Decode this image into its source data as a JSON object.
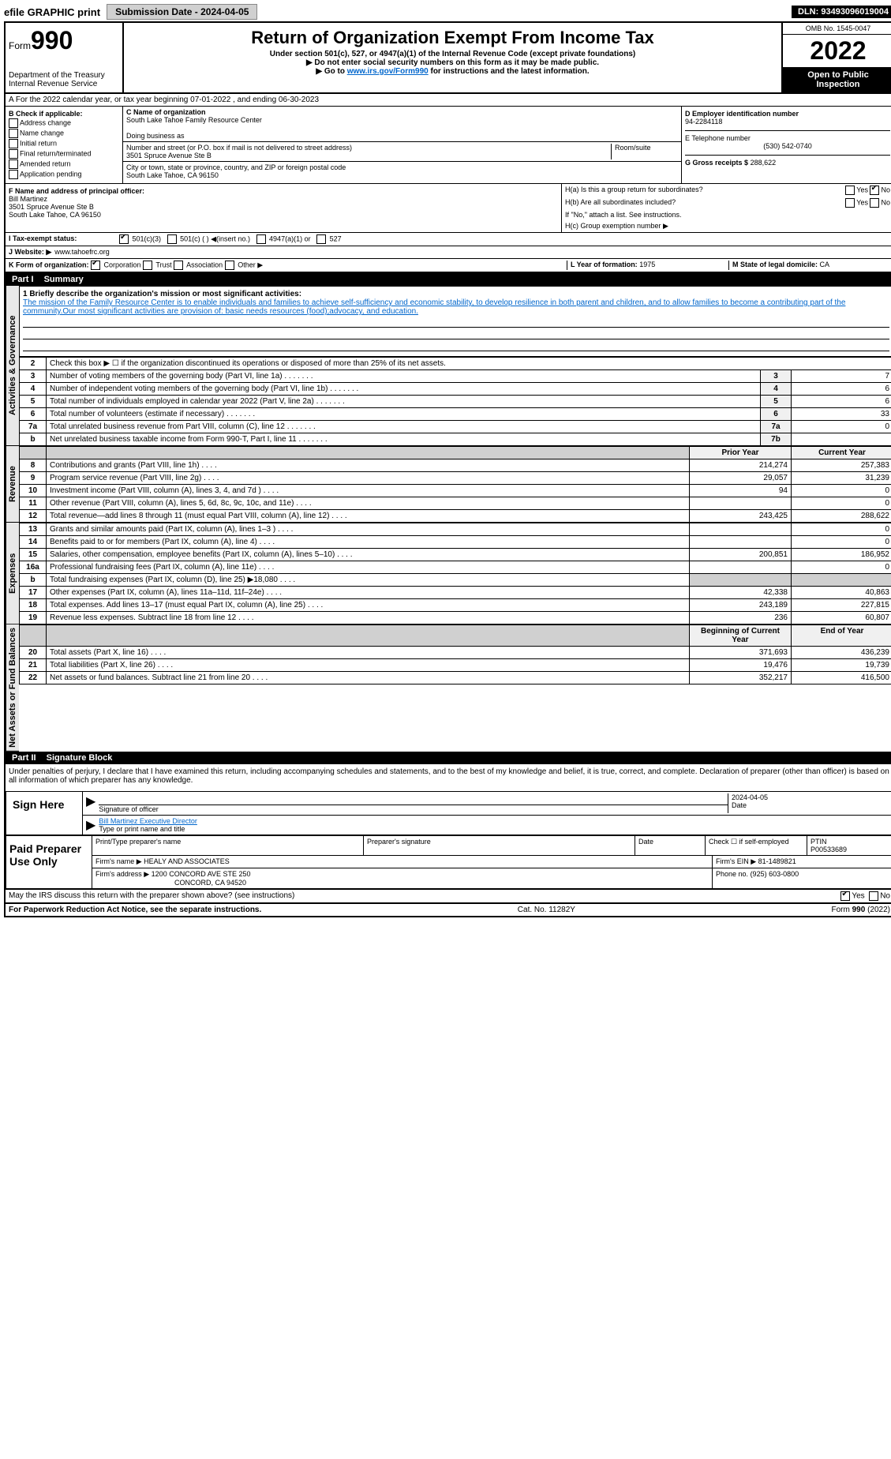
{
  "top_bar": {
    "efile": "efile GRAPHIC print",
    "submission": "Submission Date - 2024-04-05",
    "dln": "DLN: 93493096019004"
  },
  "header": {
    "form_label": "Form",
    "form_number": "990",
    "title": "Return of Organization Exempt From Income Tax",
    "subtitle1": "Under section 501(c), 527, or 4947(a)(1) of the Internal Revenue Code (except private foundations)",
    "subtitle2": "▶ Do not enter social security numbers on this form as it may be made public.",
    "subtitle3_pre": "▶ Go to ",
    "subtitle3_link": "www.irs.gov/Form990",
    "subtitle3_post": " for instructions and the latest information.",
    "dept": "Department of the Treasury",
    "irs": "Internal Revenue Service",
    "omb": "OMB No. 1545-0047",
    "year": "2022",
    "inspection": "Open to Public Inspection"
  },
  "row_a": "A For the 2022 calendar year, or tax year beginning 07-01-2022    , and ending 06-30-2023",
  "section_b": {
    "title": "B Check if applicable:",
    "items": [
      "Address change",
      "Name change",
      "Initial return",
      "Final return/terminated",
      "Amended return",
      "Application pending"
    ]
  },
  "section_c": {
    "name_label": "C Name of organization",
    "name": "South Lake Tahoe Family Resource Center",
    "dba_label": "Doing business as",
    "addr_label": "Number and street (or P.O. box if mail is not delivered to street address)",
    "room_label": "Room/suite",
    "addr": "3501 Spruce Avenue Ste B",
    "city_label": "City or town, state or province, country, and ZIP or foreign postal code",
    "city": "South Lake Tahoe, CA  96150"
  },
  "section_d": {
    "ein_label": "D Employer identification number",
    "ein": "94-2284118",
    "phone_label": "E Telephone number",
    "phone": "(530) 542-0740",
    "gross_label": "G Gross receipts $",
    "gross": "288,622"
  },
  "section_f": {
    "label": "F  Name and address of principal officer:",
    "name": "Bill Martinez",
    "addr1": "3501 Spruce Avenue Ste B",
    "addr2": "South Lake Tahoe, CA  96150"
  },
  "section_h": {
    "ha": "H(a)  Is this a group return for subordinates?",
    "hb": "H(b)  Are all subordinates included?",
    "hb_note": "If \"No,\" attach a list. See instructions.",
    "hc": "H(c)  Group exemption number ▶",
    "yes": "Yes",
    "no": "No"
  },
  "row_i": {
    "label": "I  Tax-exempt status:",
    "opt1": "501(c)(3)",
    "opt2": "501(c) (  ) ◀(insert no.)",
    "opt3": "4947(a)(1) or",
    "opt4": "527"
  },
  "row_j": {
    "label": "J  Website: ▶",
    "value": "www.tahoefrc.org"
  },
  "row_k": {
    "label": "K Form of organization:",
    "opt1": "Corporation",
    "opt2": "Trust",
    "opt3": "Association",
    "opt4": "Other ▶"
  },
  "row_lm": {
    "l_label": "L Year of formation:",
    "l_value": "1975",
    "m_label": "M State of legal domicile:",
    "m_value": "CA"
  },
  "part1": {
    "header": "Part I",
    "title": "Summary",
    "line1_label": "1 Briefly describe the organization's mission or most significant activities:",
    "line1_text": "The mission of the Family Resource Center is to enable individuals and families to achieve self-sufficiency and economic stability, to develop resilience in both parent and children, and to allow families to become a contributing part of the community.Our most significant activities are provision of: basic needs resources (food);advocacy, and education.",
    "line2": "Check this box ▶ ☐ if the organization discontinued its operations or disposed of more than 25% of its net assets.",
    "prior_header": "Prior Year",
    "current_header": "Current Year",
    "begin_header": "Beginning of Current Year",
    "end_header": "End of Year"
  },
  "governance_rows": [
    {
      "num": "3",
      "desc": "Number of voting members of the governing body (Part VI, line 1a)",
      "line": "3",
      "val": "7"
    },
    {
      "num": "4",
      "desc": "Number of independent voting members of the governing body (Part VI, line 1b)",
      "line": "4",
      "val": "6"
    },
    {
      "num": "5",
      "desc": "Total number of individuals employed in calendar year 2022 (Part V, line 2a)",
      "line": "5",
      "val": "6"
    },
    {
      "num": "6",
      "desc": "Total number of volunteers (estimate if necessary)",
      "line": "6",
      "val": "33"
    },
    {
      "num": "7a",
      "desc": "Total unrelated business revenue from Part VIII, column (C), line 12",
      "line": "7a",
      "val": "0"
    },
    {
      "num": "b",
      "desc": "Net unrelated business taxable income from Form 990-T, Part I, line 11",
      "line": "7b",
      "val": ""
    }
  ],
  "revenue_rows": [
    {
      "num": "8",
      "desc": "Contributions and grants (Part VIII, line 1h)",
      "prior": "214,274",
      "current": "257,383"
    },
    {
      "num": "9",
      "desc": "Program service revenue (Part VIII, line 2g)",
      "prior": "29,057",
      "current": "31,239"
    },
    {
      "num": "10",
      "desc": "Investment income (Part VIII, column (A), lines 3, 4, and 7d )",
      "prior": "94",
      "current": "0"
    },
    {
      "num": "11",
      "desc": "Other revenue (Part VIII, column (A), lines 5, 6d, 8c, 9c, 10c, and 11e)",
      "prior": "",
      "current": "0"
    },
    {
      "num": "12",
      "desc": "Total revenue—add lines 8 through 11 (must equal Part VIII, column (A), line 12)",
      "prior": "243,425",
      "current": "288,622"
    }
  ],
  "expenses_rows": [
    {
      "num": "13",
      "desc": "Grants and similar amounts paid (Part IX, column (A), lines 1–3 )",
      "prior": "",
      "current": "0"
    },
    {
      "num": "14",
      "desc": "Benefits paid to or for members (Part IX, column (A), line 4)",
      "prior": "",
      "current": "0"
    },
    {
      "num": "15",
      "desc": "Salaries, other compensation, employee benefits (Part IX, column (A), lines 5–10)",
      "prior": "200,851",
      "current": "186,952"
    },
    {
      "num": "16a",
      "desc": "Professional fundraising fees (Part IX, column (A), line 11e)",
      "prior": "",
      "current": "0"
    },
    {
      "num": "b",
      "desc": "Total fundraising expenses (Part IX, column (D), line 25) ▶18,080",
      "prior": "shaded",
      "current": "shaded"
    },
    {
      "num": "17",
      "desc": "Other expenses (Part IX, column (A), lines 11a–11d, 11f–24e)",
      "prior": "42,338",
      "current": "40,863"
    },
    {
      "num": "18",
      "desc": "Total expenses. Add lines 13–17 (must equal Part IX, column (A), line 25)",
      "prior": "243,189",
      "current": "227,815"
    },
    {
      "num": "19",
      "desc": "Revenue less expenses. Subtract line 18 from line 12",
      "prior": "236",
      "current": "60,807"
    }
  ],
  "netassets_rows": [
    {
      "num": "20",
      "desc": "Total assets (Part X, line 16)",
      "prior": "371,693",
      "current": "436,239"
    },
    {
      "num": "21",
      "desc": "Total liabilities (Part X, line 26)",
      "prior": "19,476",
      "current": "19,739"
    },
    {
      "num": "22",
      "desc": "Net assets or fund balances. Subtract line 21 from line 20",
      "prior": "352,217",
      "current": "416,500"
    }
  ],
  "side_labels": {
    "governance": "Activities & Governance",
    "revenue": "Revenue",
    "expenses": "Expenses",
    "netassets": "Net Assets or Fund Balances"
  },
  "part2": {
    "header": "Part II",
    "title": "Signature Block",
    "declaration": "Under penalties of perjury, I declare that I have examined this return, including accompanying schedules and statements, and to the best of my knowledge and belief, it is true, correct, and complete. Declaration of preparer (other than officer) is based on all information of which preparer has any knowledge."
  },
  "sign": {
    "label": "Sign Here",
    "sig_label": "Signature of officer",
    "date_label": "Date",
    "date": "2024-04-05",
    "name": "Bill Martinez Executive Director",
    "name_label": "Type or print name and title"
  },
  "preparer": {
    "label": "Paid Preparer Use Only",
    "name_label": "Print/Type preparer's name",
    "sig_label": "Preparer's signature",
    "date_label": "Date",
    "check_label": "Check ☐ if self-employed",
    "ptin_label": "PTIN",
    "ptin": "P00533689",
    "firm_name_label": "Firm's name   ▶",
    "firm_name": "HEALY AND ASSOCIATES",
    "firm_ein_label": "Firm's EIN ▶",
    "firm_ein": "81-1489821",
    "firm_addr_label": "Firm's address ▶",
    "firm_addr1": "1200 CONCORD AVE STE 250",
    "firm_addr2": "CONCORD, CA  94520",
    "phone_label": "Phone no.",
    "phone": "(925) 603-0800"
  },
  "footer": {
    "discuss": "May the IRS discuss this return with the preparer shown above? (see instructions)",
    "yes": "Yes",
    "no": "No",
    "paperwork": "For Paperwork Reduction Act Notice, see the separate instructions.",
    "cat": "Cat. No. 11282Y",
    "form": "Form 990 (2022)"
  }
}
